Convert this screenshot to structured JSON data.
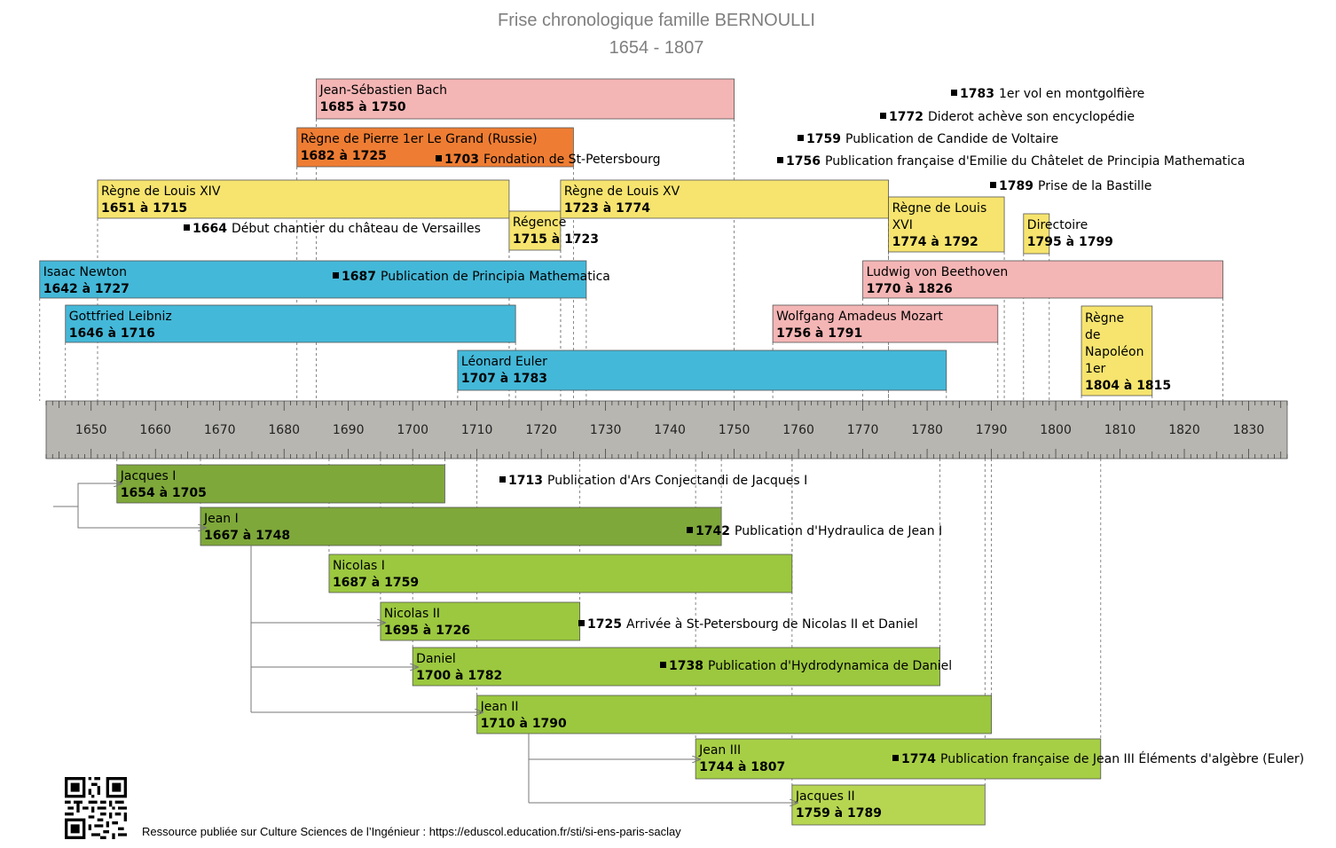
{
  "title": "Frise chronologique famille BERNOULLI",
  "subtitle": "1654 - 1807",
  "footer": "Ressource publiée sur Culture Sciences de l’Ingénieur : https://eduscol.education.fr/sti/si-ens-paris-saclay",
  "axis": {
    "min": 1643,
    "max": 1836,
    "ticks": [
      1650,
      1660,
      1670,
      1680,
      1690,
      1700,
      1710,
      1720,
      1730,
      1740,
      1750,
      1760,
      1770,
      1780,
      1790,
      1800,
      1810,
      1820,
      1830
    ],
    "color": "#b8b6b1"
  },
  "colors": {
    "pink": "#f4b5b5",
    "orange": "#ee7d33",
    "yellow": "#f6e46e",
    "cyan": "#44b8d8",
    "green1": "#7ea83a",
    "green2": "#8fbb3c",
    "green3": "#9bc83f",
    "green4": "#a7cf46",
    "green5": "#b6d651"
  },
  "bars": [
    {
      "id": "bach",
      "name": "Jean-Sébastien Bach",
      "years": "1685 à 1750",
      "start": 1685,
      "end": 1750,
      "color": "pink",
      "row": 0
    },
    {
      "id": "pierre",
      "name": "Règne de Pierre 1er Le Grand (Russie)",
      "years": "1682 à 1725",
      "start": 1682,
      "end": 1725,
      "color": "orange",
      "row": 1
    },
    {
      "id": "louis14",
      "name": "Règne de Louis XIV",
      "years": "1651 à 1715",
      "start": 1651,
      "end": 1715,
      "color": "yellow",
      "row": 2
    },
    {
      "id": "regence",
      "name": "Régence",
      "years": "1715 à 1723",
      "start": 1715,
      "end": 1723,
      "color": "yellow",
      "row": "regence"
    },
    {
      "id": "louis15",
      "name": "Règne de Louis XV",
      "years": "1723 à 1774",
      "start": 1723,
      "end": 1774,
      "color": "yellow",
      "row": 2
    },
    {
      "id": "louis16",
      "name": "Règne de Louis XVI",
      "years": "1774 à 1792",
      "start": 1774,
      "end": 1792,
      "color": "yellow",
      "row": "louis16"
    },
    {
      "id": "directoire",
      "name": "Directoire",
      "years": "1795 à 1799",
      "start": 1795,
      "end": 1799,
      "color": "yellow",
      "row": "directoire"
    },
    {
      "id": "newton",
      "name": "Isaac Newton",
      "years": "1642 à 1727",
      "start": 1642,
      "end": 1727,
      "color": "cyan",
      "row": 3
    },
    {
      "id": "beethoven",
      "name": "Ludwig von Beethoven",
      "years": "1770 à 1826",
      "start": 1770,
      "end": 1826,
      "color": "pink",
      "row": 3
    },
    {
      "id": "leibniz",
      "name": "Gottfried Leibniz",
      "years": "1646 à 1716",
      "start": 1646,
      "end": 1716,
      "color": "cyan",
      "row": 4
    },
    {
      "id": "mozart",
      "name": "Wolfgang Amadeus Mozart",
      "years": "1756 à 1791",
      "start": 1756,
      "end": 1791,
      "color": "pink",
      "row": 4
    },
    {
      "id": "napoleon",
      "name": "Règne de Napoléon 1er",
      "years": "1804 à 1815",
      "start": 1804,
      "end": 1815,
      "color": "yellow",
      "row": "napoleon"
    },
    {
      "id": "euler",
      "name": "Léonard Euler",
      "years": "1707 à 1783",
      "start": 1707,
      "end": 1783,
      "color": "cyan",
      "row": 5
    },
    {
      "id": "jacques1",
      "name": "Jacques I",
      "years": "1654 à 1705",
      "start": 1654,
      "end": 1705,
      "color": "green1",
      "row": "f0"
    },
    {
      "id": "jean1",
      "name": "Jean I",
      "years": "1667 à 1748",
      "start": 1667,
      "end": 1748,
      "color": "green1",
      "row": "f1"
    },
    {
      "id": "nicolas1",
      "name": "Nicolas I",
      "years": "1687 à 1759",
      "start": 1687,
      "end": 1759,
      "color": "green3",
      "row": "f2"
    },
    {
      "id": "nicolas2",
      "name": "Nicolas II",
      "years": "1695 à 1726",
      "start": 1695,
      "end": 1726,
      "color": "green3",
      "row": "f3"
    },
    {
      "id": "daniel",
      "name": "Daniel",
      "years": "1700 à 1782",
      "start": 1700,
      "end": 1782,
      "color": "green3",
      "row": "f4"
    },
    {
      "id": "jean2",
      "name": "Jean II",
      "years": "1710 à 1790",
      "start": 1710,
      "end": 1790,
      "color": "green3",
      "row": "f5"
    },
    {
      "id": "jean3",
      "name": "Jean III",
      "years": "1744 à 1807",
      "start": 1744,
      "end": 1807,
      "color": "green4",
      "row": "f6"
    },
    {
      "id": "jacques2",
      "name": "Jacques II",
      "years": "1759 à 1789",
      "start": 1759,
      "end": 1789,
      "color": "green5",
      "row": "f7"
    }
  ],
  "events": [
    {
      "id": "e1783",
      "year": "1783",
      "text": "1er vol en montgolfière"
    },
    {
      "id": "e1772",
      "year": "1772",
      "text": "Diderot achève son encyclopédie"
    },
    {
      "id": "e1759",
      "year": "1759",
      "text": "Publication de Candide de Voltaire"
    },
    {
      "id": "e1756",
      "year": "1756",
      "text": "Publication française d'Emilie du Châtelet de Principia Mathematica"
    },
    {
      "id": "e1703",
      "year": "1703",
      "text": "Fondation de St-Petersbourg"
    },
    {
      "id": "e1789",
      "year": "1789",
      "text": "Prise de la Bastille"
    },
    {
      "id": "e1664",
      "year": "1664",
      "text": "Début chantier du château de Versailles"
    },
    {
      "id": "e1687",
      "year": "1687",
      "text": "Publication de Principia Mathematica"
    },
    {
      "id": "e1713",
      "year": "1713",
      "text": "Publication d'Ars Conjectandi de Jacques I"
    },
    {
      "id": "e1742",
      "year": "1742",
      "text": "Publication d'Hydraulica de Jean I"
    },
    {
      "id": "e1725",
      "year": "1725",
      "text": "Arrivée à St-Petersbourg de Nicolas II et Daniel"
    },
    {
      "id": "e1738",
      "year": "1738",
      "text": "Publication d'Hydrodynamica de Daniel"
    },
    {
      "id": "e1774",
      "year": "1774",
      "text": "Publication française de Jean III Éléments d'algèbre (Euler)"
    }
  ]
}
